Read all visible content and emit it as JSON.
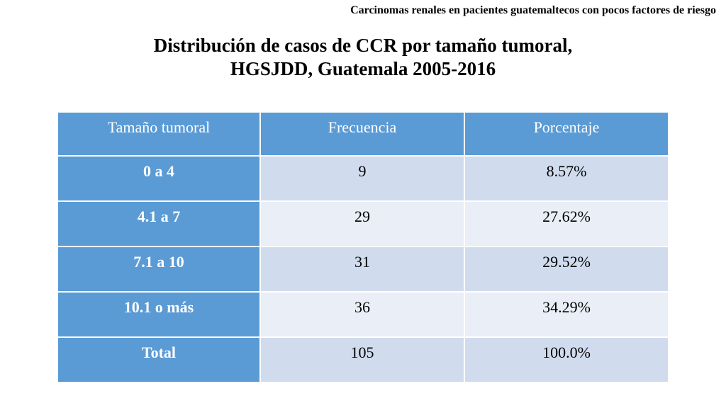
{
  "header_note": "Carcinomas renales en pacientes guatemaltecos con pocos factores de riesgo",
  "title": {
    "line1": "Distribución de casos de CCR por tamaño tumoral,",
    "line2": "HGSJDD, Guatemala 2005-2016"
  },
  "table": {
    "columns": [
      "Tamaño tumoral",
      "Frecuencia",
      "Porcentaje"
    ],
    "rows": [
      {
        "size": "0 a 4",
        "freq": "9",
        "pct": "8.57%"
      },
      {
        "size": "4.1 a 7",
        "freq": "29",
        "pct": "27.62%"
      },
      {
        "size": "7.1 a 10",
        "freq": "31",
        "pct": "29.52%"
      },
      {
        "size": "10.1 o más",
        "freq": "36",
        "pct": "34.29%"
      },
      {
        "size": "Total",
        "freq": "105",
        "pct": "100.0%"
      }
    ]
  },
  "colors": {
    "header_blue": "#5b9bd5",
    "row_dark": "#d0dcee",
    "row_light": "#e9eef7"
  }
}
